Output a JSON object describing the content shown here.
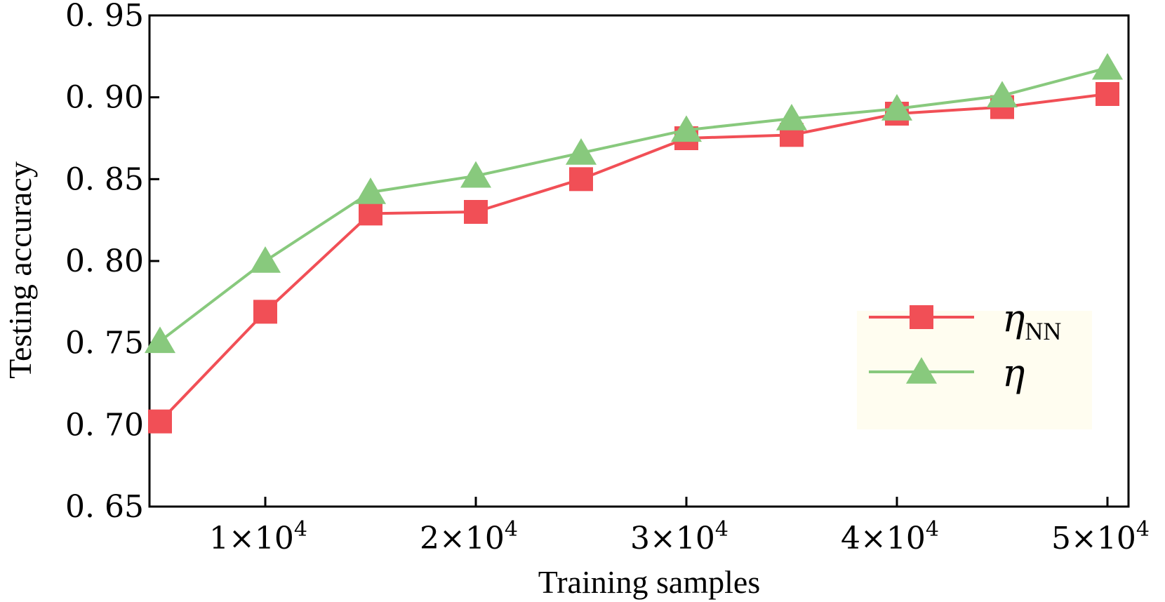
{
  "chart_data": {
    "type": "line",
    "xlabel": "Training samples",
    "ylabel": "Testing accuracy",
    "xlim": [
      4500,
      51000
    ],
    "ylim": [
      0.65,
      0.95
    ],
    "x": [
      5000,
      10000,
      15000,
      20000,
      25000,
      30000,
      35000,
      40000,
      45000,
      50000
    ],
    "x_ticks": [
      {
        "value": 10000,
        "mantissa": "1",
        "times": "×",
        "base": "10",
        "exp": "4"
      },
      {
        "value": 20000,
        "mantissa": "2",
        "times": "×",
        "base": "10",
        "exp": "4"
      },
      {
        "value": 30000,
        "mantissa": "3",
        "times": "×",
        "base": "10",
        "exp": "4"
      },
      {
        "value": 40000,
        "mantissa": "4",
        "times": "×",
        "base": "10",
        "exp": "4"
      },
      {
        "value": 50000,
        "mantissa": "5",
        "times": "×",
        "base": "10",
        "exp": "4"
      }
    ],
    "y_ticks": [
      {
        "value": 0.65,
        "label": "0. 65"
      },
      {
        "value": 0.7,
        "label": "0. 70"
      },
      {
        "value": 0.75,
        "label": "0. 75"
      },
      {
        "value": 0.8,
        "label": "0. 80"
      },
      {
        "value": 0.85,
        "label": "0. 85"
      },
      {
        "value": 0.9,
        "label": "0. 90"
      },
      {
        "value": 0.95,
        "label": "0. 95"
      }
    ],
    "series": [
      {
        "name": "eta_NN",
        "symbol": "η",
        "subscript": "NN",
        "color": "#f14f56",
        "marker": "square",
        "values": [
          0.702,
          0.769,
          0.829,
          0.83,
          0.85,
          0.875,
          0.877,
          0.89,
          0.894,
          0.902
        ]
      },
      {
        "name": "eta",
        "symbol": "η",
        "subscript": "",
        "color": "#88c97d",
        "marker": "triangle",
        "values": [
          0.751,
          0.8,
          0.842,
          0.852,
          0.866,
          0.88,
          0.887,
          0.893,
          0.901,
          0.918
        ]
      }
    ],
    "legend": {
      "position": "bottom-right",
      "background": "#fffdf0"
    }
  }
}
